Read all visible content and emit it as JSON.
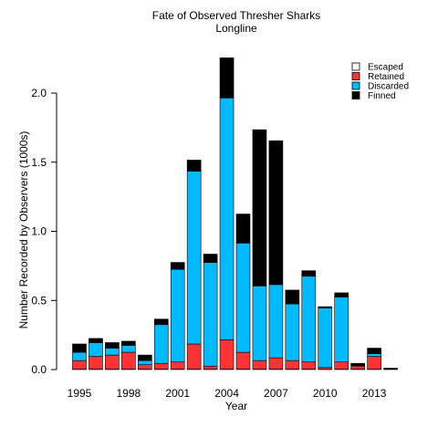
{
  "chart_data": {
    "type": "bar",
    "stacked": true,
    "title": "Fate of Observed Thresher Sharks",
    "subtitle": "Longline",
    "xlabel": "Year",
    "ylabel": "Number Recorded by Observers (1000s)",
    "ylim": [
      0,
      2.25
    ],
    "yticks": [
      "0.0",
      "0.5",
      "1.0",
      "1.5",
      "2.0"
    ],
    "xtick_labels": [
      {
        "year": 1995,
        "label": "1995"
      },
      {
        "year": 1998,
        "label": "1998"
      },
      {
        "year": 2001,
        "label": "2001"
      },
      {
        "year": 2004,
        "label": "2004"
      },
      {
        "year": 2007,
        "label": "2007"
      },
      {
        "year": 2010,
        "label": "2010"
      },
      {
        "year": 2013,
        "label": "2013"
      }
    ],
    "categories": [
      1995,
      1996,
      1997,
      1998,
      1999,
      2000,
      2001,
      2002,
      2003,
      2004,
      2005,
      2006,
      2007,
      2008,
      2009,
      2010,
      2011,
      2012,
      2013,
      2014
    ],
    "legend_position": "top-right",
    "series": [
      {
        "name": "Escaped",
        "color": "#ffffff",
        "values": [
          0.005,
          0.005,
          0.005,
          0.005,
          0.005,
          0.005,
          0.005,
          0.005,
          0.005,
          0.005,
          0.005,
          0.005,
          0.005,
          0.005,
          0.005,
          0.005,
          0.005,
          0.005,
          0.005,
          0.0
        ]
      },
      {
        "name": "Retained",
        "color": "#ff3333",
        "values": [
          0.06,
          0.09,
          0.1,
          0.12,
          0.03,
          0.04,
          0.05,
          0.18,
          0.02,
          0.21,
          0.12,
          0.06,
          0.08,
          0.06,
          0.05,
          0.01,
          0.05,
          0.02,
          0.09,
          0.0
        ]
      },
      {
        "name": "Discarded",
        "color": "#00bbff",
        "values": [
          0.06,
          0.1,
          0.05,
          0.05,
          0.03,
          0.28,
          0.67,
          1.25,
          0.75,
          1.75,
          0.79,
          0.54,
          0.53,
          0.41,
          0.62,
          0.43,
          0.47,
          0.0,
          0.02,
          0.0
        ]
      },
      {
        "name": "Finned",
        "color": "#000000",
        "values": [
          0.06,
          0.03,
          0.04,
          0.03,
          0.04,
          0.04,
          0.05,
          0.08,
          0.06,
          0.29,
          0.21,
          1.13,
          1.04,
          0.1,
          0.04,
          0.01,
          0.03,
          0.02,
          0.04,
          0.01
        ]
      }
    ]
  }
}
